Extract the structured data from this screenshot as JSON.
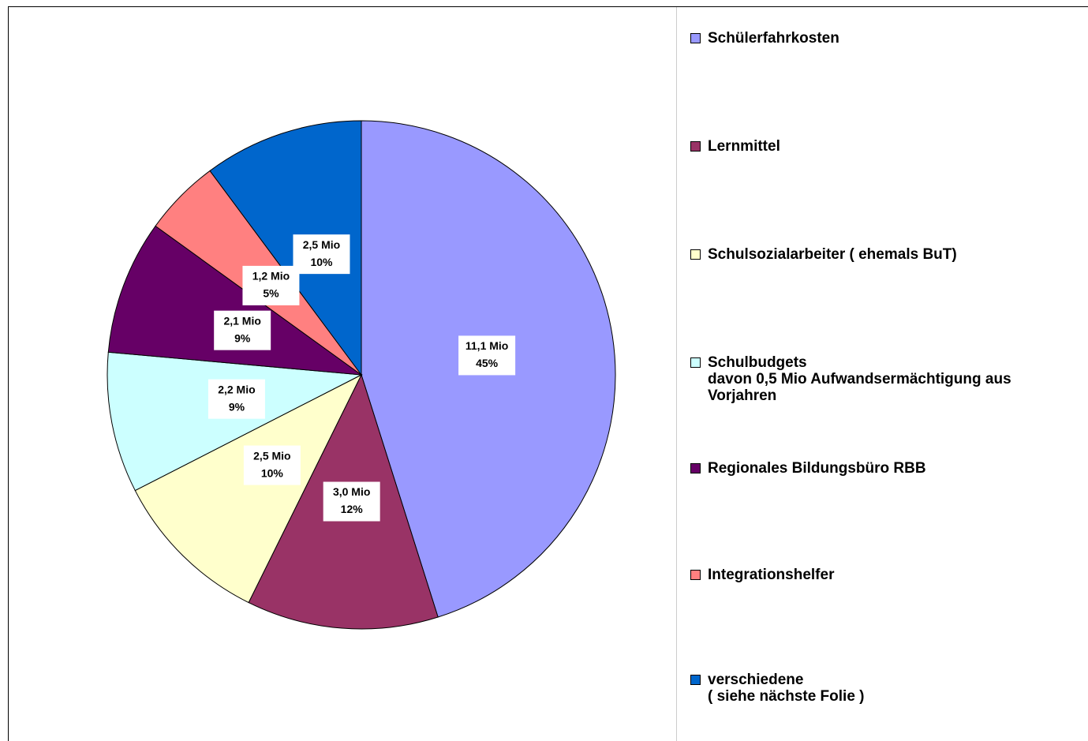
{
  "chart_data": {
    "type": "pie",
    "categories": [
      "Schülerfahrkosten",
      "Lernmittel",
      "Schulsozialarbeiter ( ehemals BuT)",
      "Schulbudgets\ndavon 0,5 Mio Aufwandsermächtigung aus\nVorjahren",
      "Regionales Bildungsbüro RBB",
      "Integrationshelfer",
      "verschiedene\n( siehe nächste Folie )"
    ],
    "values": [
      11.1,
      3.0,
      2.5,
      2.2,
      2.1,
      1.2,
      2.5
    ],
    "value_labels": [
      "11,1 Mio",
      "3,0 Mio",
      "2,5 Mio",
      "2,2 Mio",
      "2,1 Mio",
      "1,2 Mio",
      "2,5 Mio"
    ],
    "shares": [
      45,
      12,
      10,
      9,
      9,
      5,
      10
    ],
    "share_labels": [
      "45%",
      "12%",
      "10%",
      "9%",
      "9%",
      "5%",
      "10%"
    ],
    "colors": [
      "#9999ff",
      "#993366",
      "#ffffcc",
      "#ccffff",
      "#660066",
      "#ff8080",
      "#0066cc"
    ],
    "legend": "right"
  }
}
